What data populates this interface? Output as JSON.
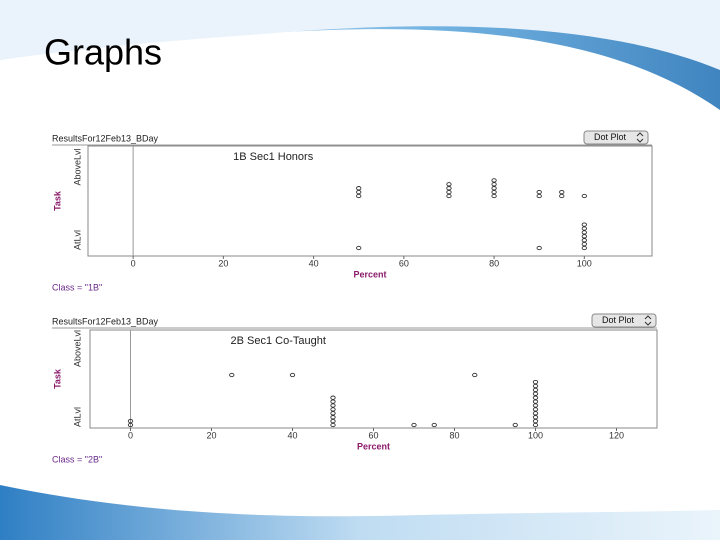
{
  "title": "Graphs",
  "chart_data": [
    {
      "type": "dot",
      "header": "ResultsFor12Feb13_BDay",
      "button": "Dot Plot",
      "title": "1B Sec1 Honors",
      "xlabel": "Percent",
      "ylabel": "Task",
      "footer": "Class = \"1B\"",
      "xlim": [
        -10,
        115
      ],
      "xticks": [
        0,
        20,
        40,
        60,
        80,
        100
      ],
      "reference_line_x": 0,
      "color": "#333333",
      "rows": [
        {
          "label": "AboveLvl",
          "values": [
            50,
            50,
            50,
            70,
            70,
            70,
            70,
            80,
            80,
            80,
            80,
            80,
            90,
            90,
            95,
            95,
            100
          ]
        },
        {
          "label": "AtLvl",
          "values": [
            50,
            90,
            100,
            100,
            100,
            100,
            100,
            100,
            100
          ]
        }
      ]
    },
    {
      "type": "dot",
      "header": "ResultsFor12Feb13_BDay",
      "button": "Dot Plot",
      "title": "2B Sec1 Co-Taught",
      "xlabel": "Percent",
      "ylabel": "Task",
      "footer": "Class = \"2B\"",
      "xlim": [
        -10,
        130
      ],
      "xticks": [
        0,
        20,
        40,
        60,
        80,
        100,
        120
      ],
      "reference_line_x": 0,
      "color": "#333333",
      "rows": [
        {
          "label": "AboveLvl",
          "values": [
            25,
            40,
            85
          ]
        },
        {
          "label": "AtLvl",
          "values": [
            0,
            0,
            50,
            50,
            50,
            50,
            50,
            50,
            50,
            50,
            70,
            75,
            95,
            100,
            100,
            100,
            100,
            100,
            100,
            100,
            100,
            100,
            100,
            100,
            100
          ]
        }
      ]
    }
  ]
}
